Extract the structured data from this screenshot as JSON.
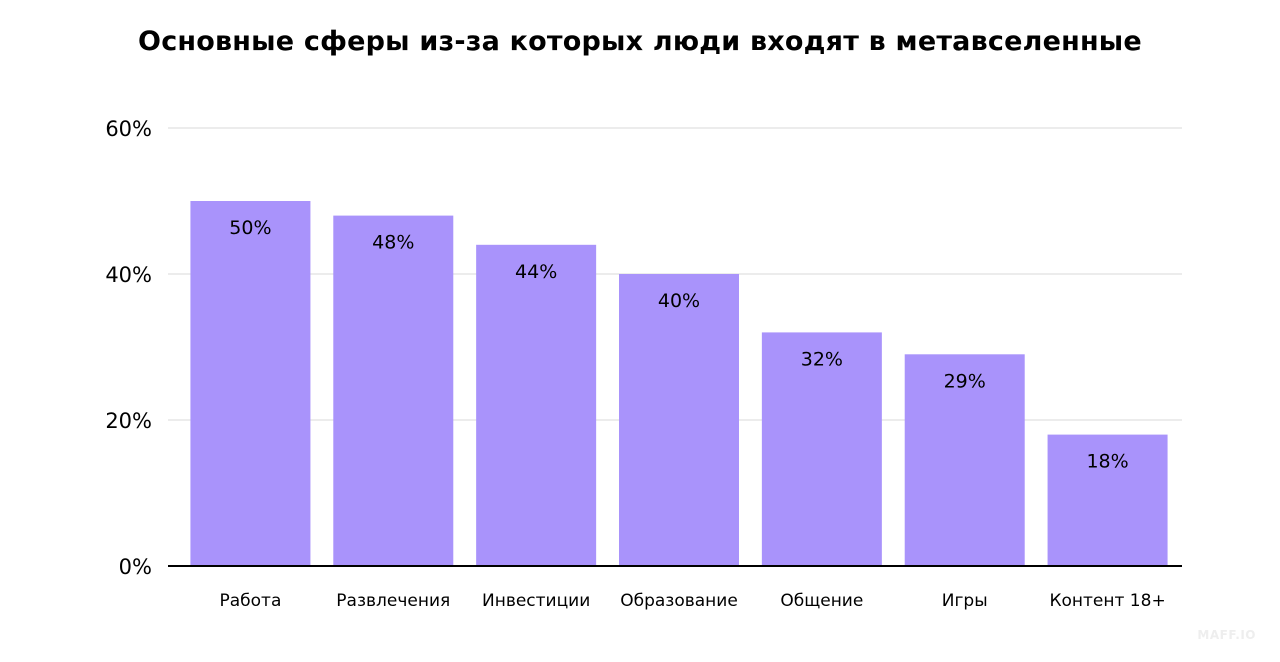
{
  "chart_data": {
    "type": "bar",
    "title": "Основные сферы из-за которых люди входят в метавселенные",
    "categories": [
      "Работа",
      "Развлечения",
      "Инвестиции",
      "Образование",
      "Общение",
      "Игры",
      "Контент 18+"
    ],
    "values": [
      50,
      48,
      44,
      40,
      32,
      29,
      18
    ],
    "value_labels": [
      "50%",
      "48%",
      "44%",
      "40%",
      "32%",
      "29%",
      "18%"
    ],
    "yticks": [
      0,
      20,
      40,
      60
    ],
    "ytick_labels": [
      "0%",
      "20%",
      "40%",
      "60%"
    ],
    "ylim": [
      0,
      60
    ],
    "xlabel": "",
    "ylabel": "",
    "grid": true,
    "legend": "none",
    "bar_color": "#a993fb"
  },
  "watermark": "MAFF.IO"
}
